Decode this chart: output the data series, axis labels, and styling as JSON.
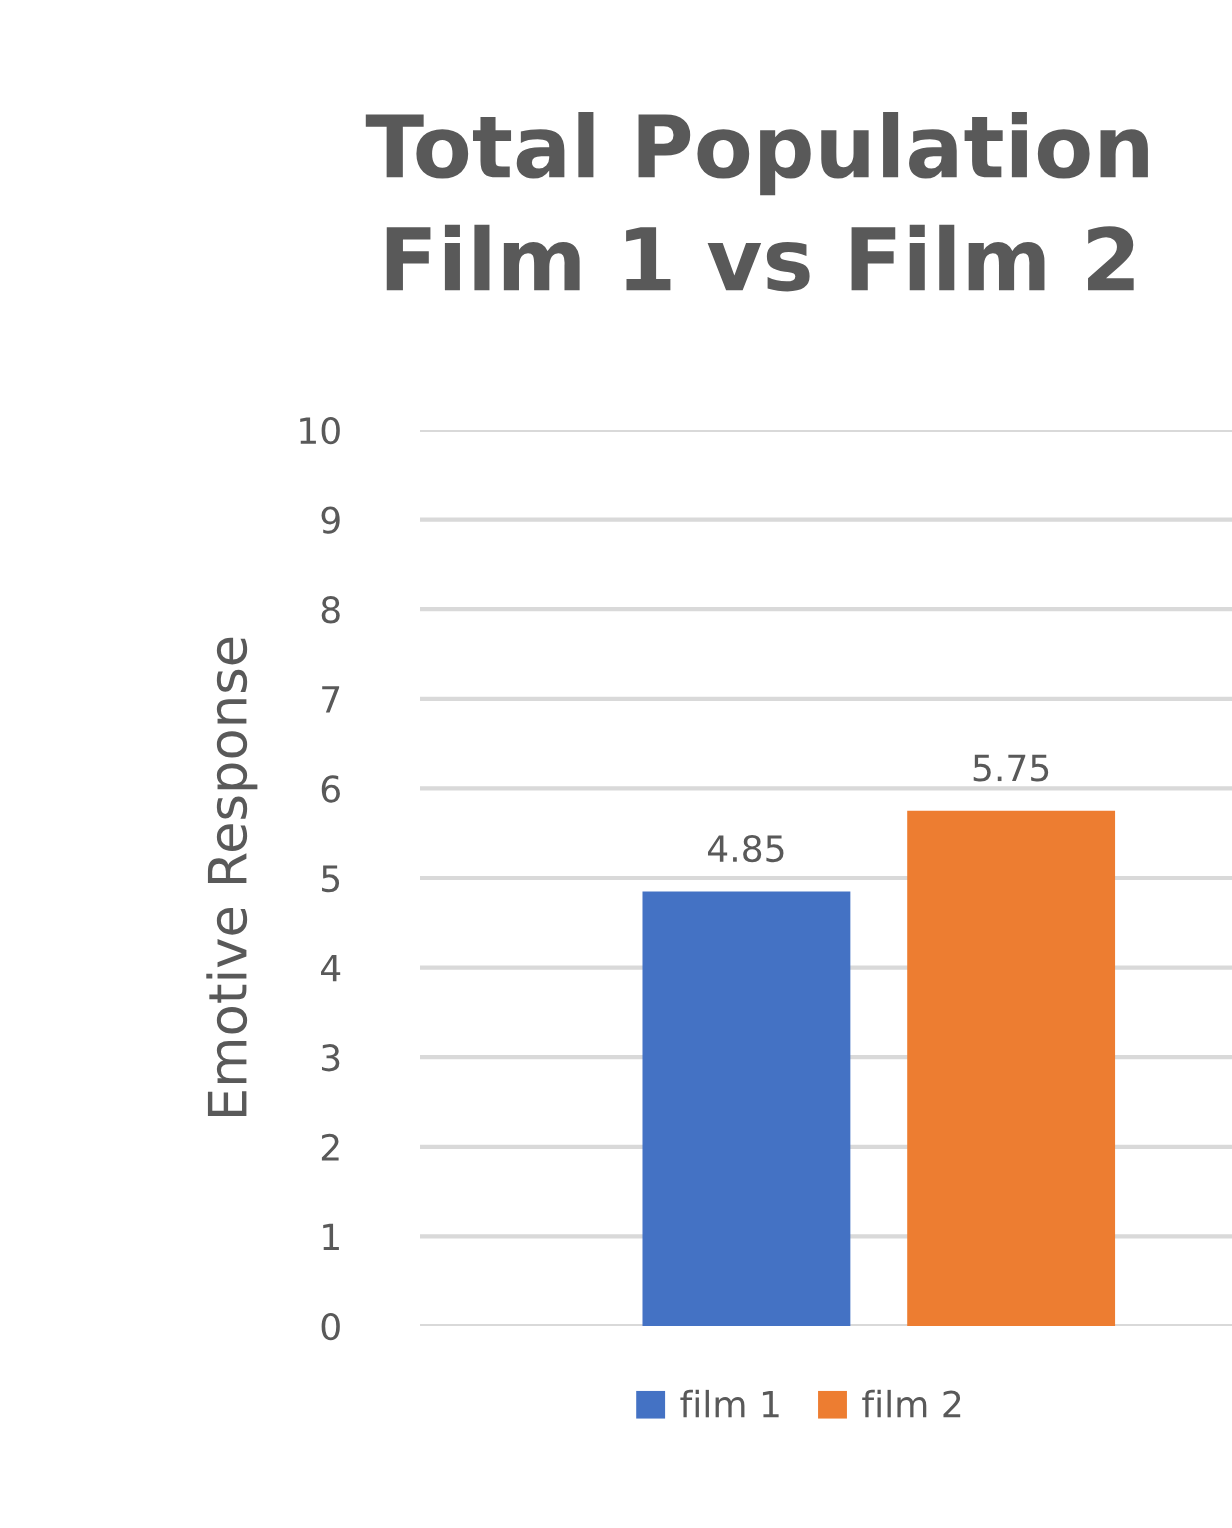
{
  "chart_data": {
    "type": "bar",
    "title": "Total Population\nFilm 1 vs Film 2",
    "ylabel": "Emotive Response",
    "categories": [
      null
    ],
    "series": [
      {
        "name": "film 1",
        "color": "#4472c4",
        "values": [
          4.85
        ]
      },
      {
        "name": "film 2",
        "color": "#ed7d31",
        "values": [
          5.75
        ]
      }
    ],
    "ylim": [
      0,
      10
    ],
    "yticks": [
      0,
      1,
      2,
      3,
      4,
      5,
      6,
      7,
      8,
      9,
      10
    ],
    "grid": "y",
    "legend": "bottom",
    "data_labels": true
  }
}
